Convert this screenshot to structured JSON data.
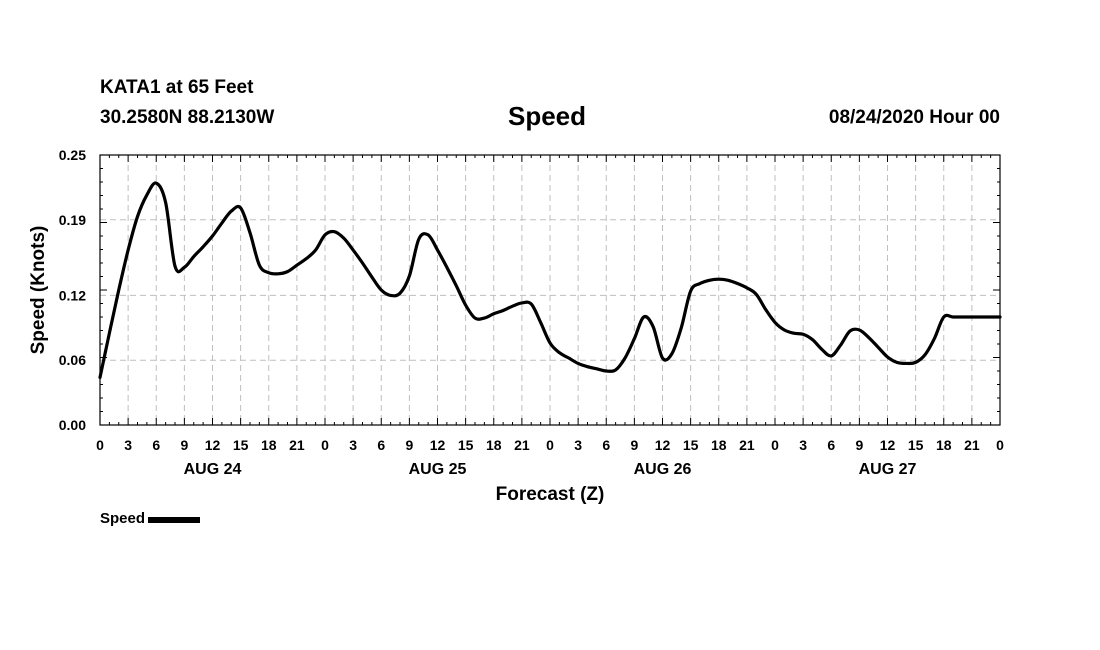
{
  "header": {
    "station": "KATA1 at 65 Feet",
    "coords": "30.2580N 88.2130W",
    "title": "Speed",
    "datetime": "08/24/2020 Hour 00"
  },
  "chart_data": {
    "type": "line",
    "title": "Speed",
    "xlabel": "Forecast (Z)",
    "ylabel": "Speed (Knots)",
    "xlim": [
      0,
      96
    ],
    "ylim": [
      0,
      0.25
    ],
    "grid": true,
    "yticks": [
      0.0,
      0.06,
      0.12,
      0.19,
      0.25
    ],
    "ytick_labels": [
      "0.00",
      "0.06",
      "0.12",
      "0.19",
      "0.25"
    ],
    "xtick_hours": [
      0,
      3,
      6,
      9,
      12,
      15,
      18,
      21,
      24,
      27,
      30,
      33,
      36,
      39,
      42,
      45,
      48,
      51,
      54,
      57,
      60,
      63,
      66,
      69,
      72,
      75,
      78,
      81,
      84,
      87,
      90,
      93,
      96
    ],
    "xtick_labels": [
      "0",
      "3",
      "6",
      "9",
      "12",
      "15",
      "18",
      "21",
      "0",
      "3",
      "6",
      "9",
      "12",
      "15",
      "18",
      "21",
      "0",
      "3",
      "6",
      "9",
      "12",
      "15",
      "18",
      "21",
      "0",
      "3",
      "6",
      "9",
      "12",
      "15",
      "18",
      "21",
      "0"
    ],
    "day_labels": [
      {
        "hour": 12,
        "label": "AUG 24"
      },
      {
        "hour": 36,
        "label": "AUG 25"
      },
      {
        "hour": 60,
        "label": "AUG 26"
      },
      {
        "hour": 84,
        "label": "AUG 27"
      }
    ],
    "series": [
      {
        "name": "Speed",
        "color": "#000000",
        "x": [
          0,
          1,
          2,
          3,
          4,
          5,
          6,
          7,
          8,
          9,
          10,
          11,
          12,
          13,
          14,
          15,
          16,
          17,
          18,
          19,
          20,
          21,
          22,
          23,
          24,
          25,
          26,
          27,
          28,
          29,
          30,
          31,
          32,
          33,
          34,
          35,
          36,
          37,
          38,
          39,
          40,
          41,
          42,
          43,
          44,
          45,
          46,
          47,
          48,
          49,
          50,
          51,
          52,
          53,
          54,
          55,
          56,
          57,
          58,
          59,
          60,
          61,
          62,
          63,
          64,
          65,
          66,
          67,
          68,
          69,
          70,
          71,
          72,
          73,
          74,
          75,
          76,
          77,
          78,
          79,
          80,
          81,
          82,
          83,
          84,
          85,
          86,
          87,
          88,
          89,
          90,
          91,
          92,
          93,
          94,
          95,
          96
        ],
        "y": [
          0.044,
          0.085,
          0.125,
          0.162,
          0.193,
          0.213,
          0.224,
          0.206,
          0.147,
          0.146,
          0.156,
          0.165,
          0.175,
          0.187,
          0.198,
          0.201,
          0.178,
          0.148,
          0.141,
          0.14,
          0.142,
          0.148,
          0.154,
          0.162,
          0.176,
          0.179,
          0.173,
          0.162,
          0.15,
          0.137,
          0.125,
          0.12,
          0.122,
          0.138,
          0.172,
          0.176,
          0.162,
          0.146,
          0.129,
          0.111,
          0.099,
          0.099,
          0.103,
          0.106,
          0.11,
          0.113,
          0.112,
          0.095,
          0.076,
          0.067,
          0.062,
          0.057,
          0.054,
          0.052,
          0.05,
          0.051,
          0.062,
          0.08,
          0.1,
          0.091,
          0.062,
          0.066,
          0.09,
          0.124,
          0.131,
          0.134,
          0.135,
          0.134,
          0.131,
          0.127,
          0.121,
          0.107,
          0.095,
          0.088,
          0.085,
          0.084,
          0.079,
          0.07,
          0.064,
          0.074,
          0.087,
          0.088,
          0.081,
          0.072,
          0.063,
          0.058,
          0.057,
          0.058,
          0.065,
          0.08,
          0.1,
          0.1,
          0.1,
          0.1,
          0.1,
          0.1,
          0.1
        ]
      }
    ]
  },
  "legend": {
    "label": "Speed"
  }
}
